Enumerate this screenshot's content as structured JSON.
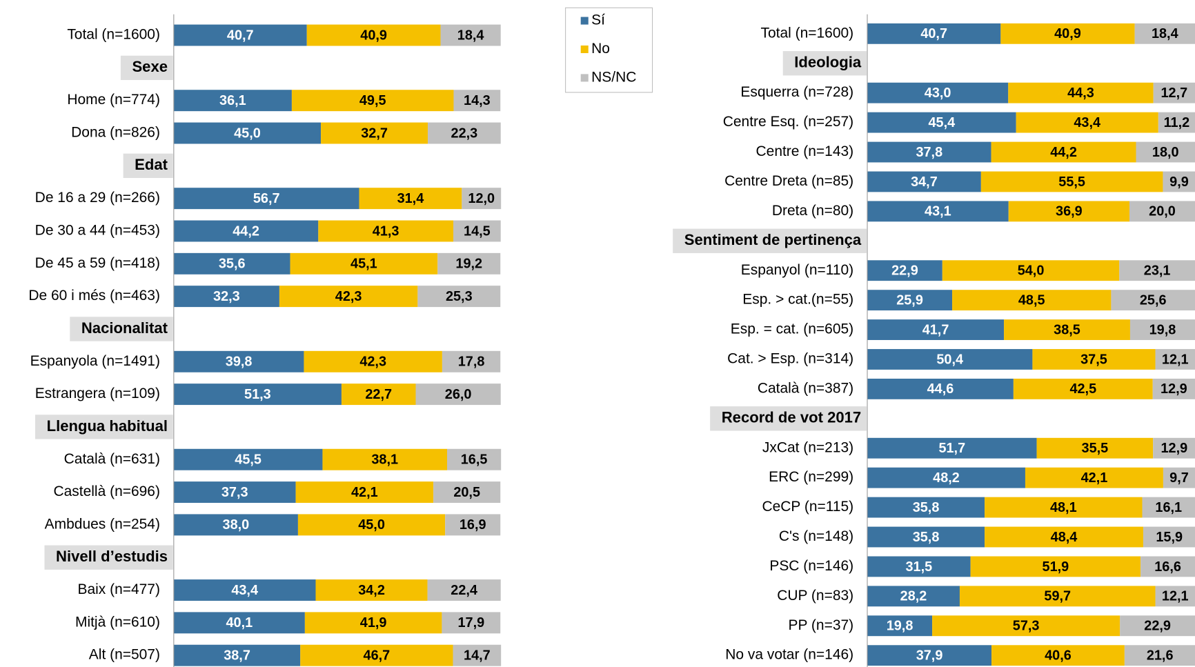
{
  "chart_data": [
    {
      "type": "bar",
      "orientation": "horizontal",
      "stacked": true,
      "xlim": [
        0,
        100
      ],
      "categories": [
        "Total (n=1600)",
        "Sexe",
        "Home (n=774)",
        "Dona (n=826)",
        "Edat",
        "De 16 a 29 (n=266)",
        "De 30 a 44 (n=453)",
        "De 45 a 59 (n=418)",
        "De 60 i més (n=463)",
        "Nacionalitat",
        "Espanyola (n=1491)",
        "Estrangera (n=109)",
        "Llengua habitual",
        "Català (n=631)",
        "Castellà (n=696)",
        "Ambdues (n=254)",
        "Nivell d’estudis",
        "Baix (n=477)",
        "Mitjà (n=610)",
        "Alt (n=507)"
      ],
      "series": [
        {
          "name": "Sí",
          "color": "#3b73a0",
          "values": [
            40.7,
            null,
            36.1,
            45.0,
            null,
            56.7,
            44.2,
            35.6,
            32.3,
            null,
            39.8,
            51.3,
            null,
            45.5,
            37.3,
            38.0,
            null,
            43.4,
            40.1,
            38.7
          ],
          "value_labels": [
            "40,7",
            null,
            "36,1",
            "45,0",
            null,
            "56,7",
            "44,2",
            "35,6",
            "32,3",
            null,
            "39,8",
            "51,3",
            null,
            "45,5",
            "37,3",
            "38,0",
            null,
            "43,4",
            "40,1",
            "38,7"
          ]
        },
        {
          "name": "No",
          "color": "#f5c000",
          "values": [
            40.9,
            null,
            49.5,
            32.7,
            null,
            31.4,
            41.3,
            45.1,
            42.3,
            null,
            42.3,
            22.7,
            null,
            38.1,
            42.1,
            45.0,
            null,
            34.2,
            41.9,
            46.7
          ],
          "value_labels": [
            "40,9",
            null,
            "49,5",
            "32,7",
            null,
            "31,4",
            "41,3",
            "45,1",
            "42,3",
            null,
            "42,3",
            "22,7",
            null,
            "38,1",
            "42,1",
            "45,0",
            null,
            "34,2",
            "41,9",
            "46,7"
          ]
        },
        {
          "name": "NS/NC",
          "color": "#c0c0c0",
          "values": [
            18.4,
            null,
            14.3,
            22.3,
            null,
            12.0,
            14.5,
            19.2,
            25.3,
            null,
            17.8,
            26.0,
            null,
            16.5,
            20.5,
            16.9,
            null,
            22.4,
            17.9,
            14.7
          ],
          "value_labels": [
            "18,4",
            null,
            "14,3",
            "22,3",
            null,
            "12,0",
            "14,5",
            "19,2",
            "25,3",
            null,
            "17,8",
            "26,0",
            null,
            "16,5",
            "20,5",
            "16,9",
            null,
            "22,4",
            "17,9",
            "14,7"
          ]
        }
      ]
    },
    {
      "type": "bar",
      "orientation": "horizontal",
      "stacked": true,
      "xlim": [
        0,
        100
      ],
      "categories": [
        "Total (n=1600)",
        "Ideologia",
        "Esquerra (n=728)",
        "Centre Esq. (n=257)",
        "Centre (n=143)",
        "Centre Dreta (n=85)",
        "Dreta (n=80)",
        "Sentiment de pertinença",
        "Espanyol (n=110)",
        "Esp. > cat.(n=55)",
        "Esp. = cat. (n=605)",
        "Cat. > Esp. (n=314)",
        "Català (n=387)",
        "Record de vot 2017",
        "JxCat (n=213)",
        "ERC (n=299)",
        "CeCP (n=115)",
        "C's (n=148)",
        "PSC (n=146)",
        "CUP (n=83)",
        "PP (n=37)",
        "No va votar (n=146)"
      ],
      "series": [
        {
          "color": "#3b73a0",
          "values": [
            40.7,
            null,
            43.0,
            45.4,
            37.8,
            34.7,
            43.1,
            null,
            22.9,
            25.9,
            41.7,
            50.4,
            44.6,
            null,
            51.7,
            48.2,
            35.8,
            35.8,
            31.5,
            28.2,
            19.8,
            37.9
          ],
          "value_labels": [
            "40,7",
            null,
            "43,0",
            "45,4",
            "37,8",
            "34,7",
            "43,1",
            null,
            "22,9",
            "25,9",
            "41,7",
            "50,4",
            "44,6",
            null,
            "51,7",
            "48,2",
            "35,8",
            "35,8",
            "31,5",
            "28,2",
            "19,8",
            "37,9"
          ]
        },
        {
          "color": "#f5c000",
          "values": [
            40.9,
            null,
            44.3,
            43.4,
            44.2,
            55.5,
            36.9,
            null,
            54.0,
            48.5,
            38.5,
            37.5,
            42.5,
            null,
            35.5,
            42.1,
            48.1,
            48.4,
            51.9,
            59.7,
            57.3,
            40.6
          ],
          "value_labels": [
            "40,9",
            null,
            "44,3",
            "43,4",
            "44,2",
            "55,5",
            "36,9",
            null,
            "54,0",
            "48,5",
            "38,5",
            "37,5",
            "42,5",
            null,
            "35,5",
            "42,1",
            "48,1",
            "48,4",
            "51,9",
            "59,7",
            "57,3",
            "40,6"
          ]
        },
        {
          "color": "#c0c0c0",
          "values": [
            18.4,
            null,
            12.7,
            11.2,
            18.0,
            9.9,
            20.0,
            null,
            23.1,
            25.6,
            19.8,
            12.1,
            12.9,
            null,
            12.9,
            9.7,
            16.1,
            15.9,
            16.6,
            12.1,
            22.9,
            21.6
          ],
          "value_labels": [
            "18,4",
            null,
            "12,7",
            "11,2",
            "18,0",
            "9,9",
            "20,0",
            null,
            "23,1",
            "25,6",
            "19,8",
            "12,1",
            "12,9",
            null,
            "12,9",
            "9,7",
            "16,1",
            "15,9",
            "16,6",
            "12,1",
            "22,9",
            "21,6"
          ]
        }
      ]
    }
  ]
}
